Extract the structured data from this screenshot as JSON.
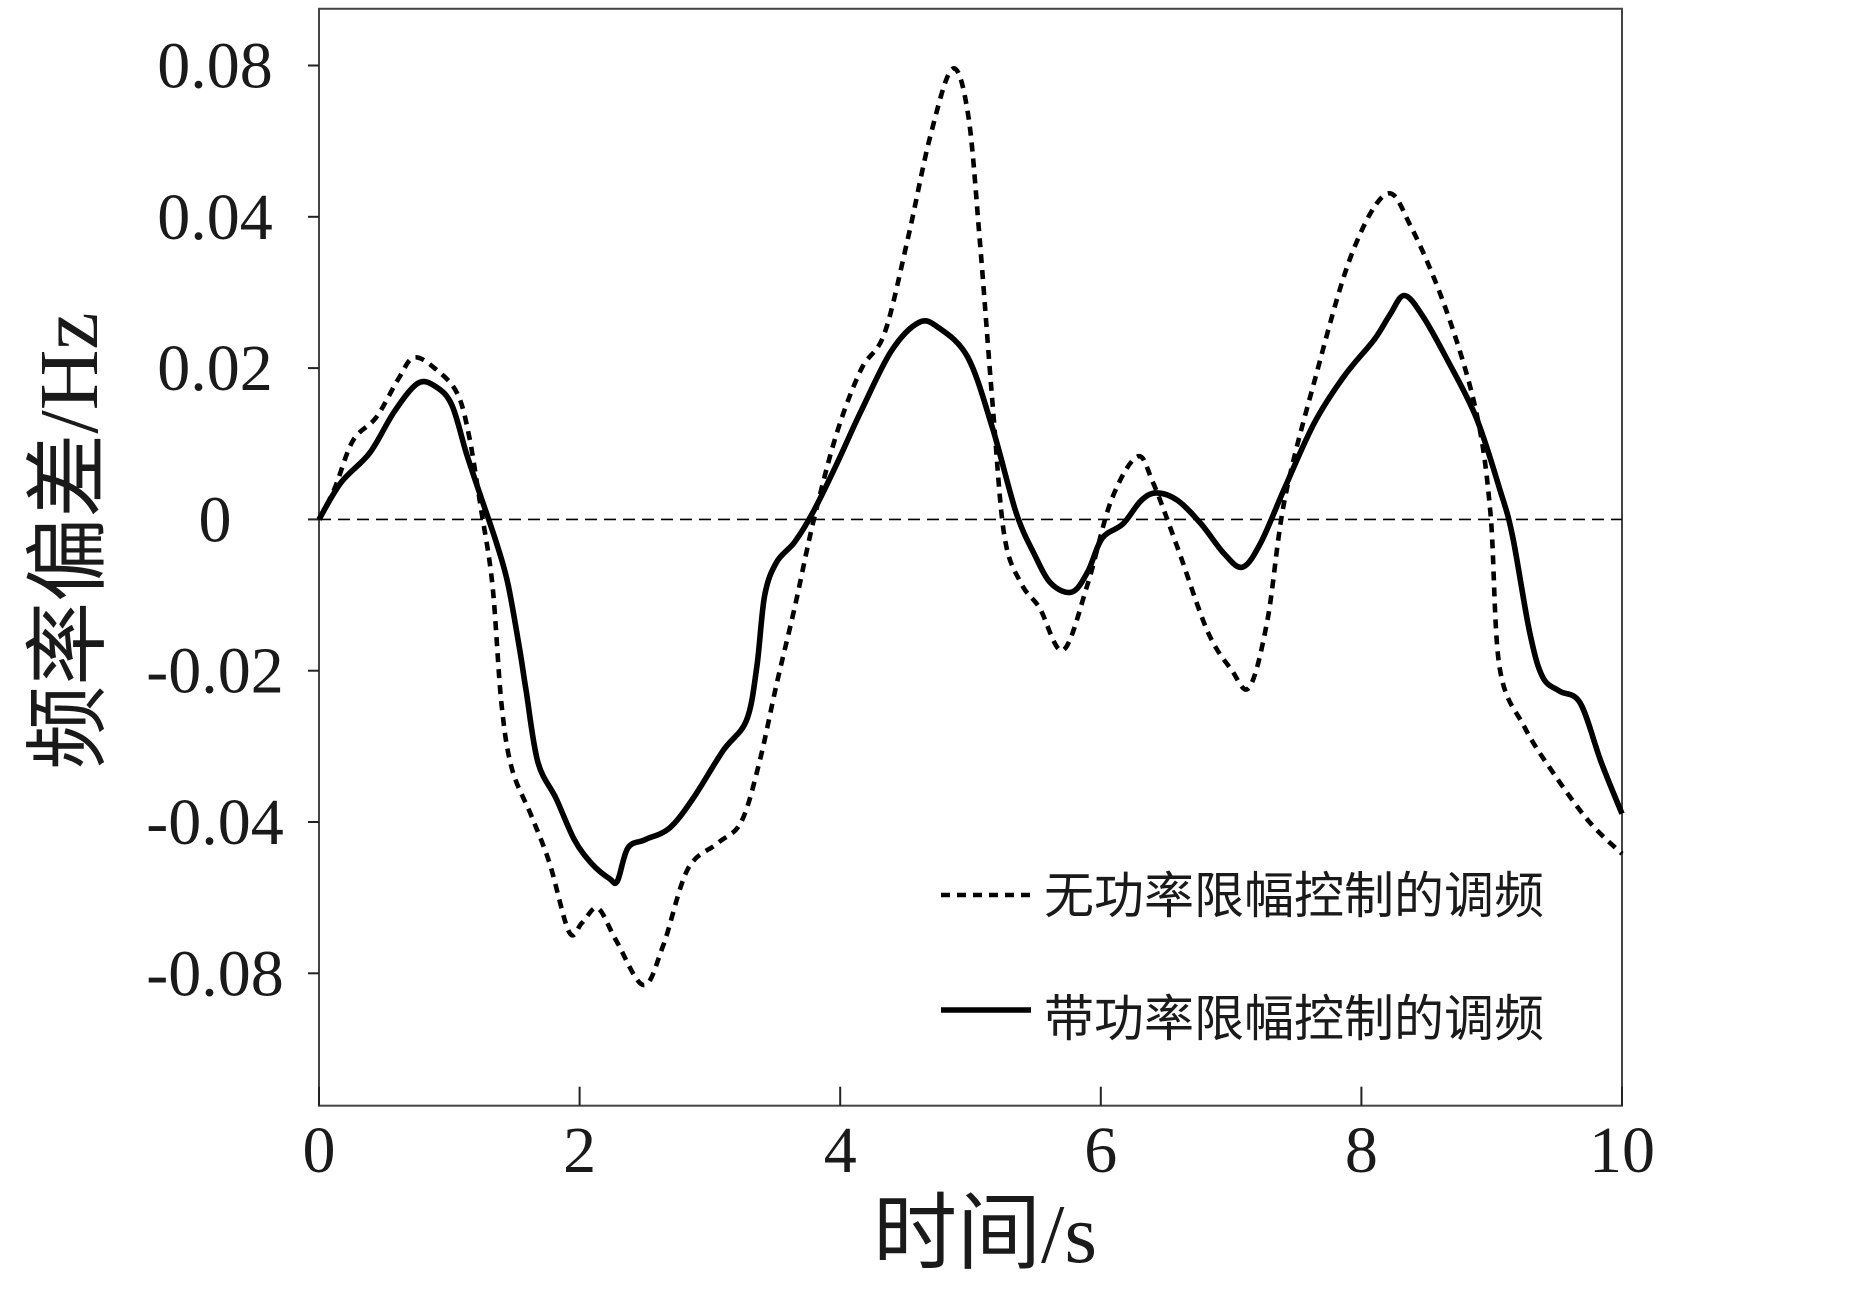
{
  "chart_data": {
    "type": "line",
    "xlabel": "时间/s",
    "ylabel": "频率偏差/Hz",
    "xlim": [
      0,
      10
    ],
    "xticks": [
      0,
      2,
      4,
      6,
      8,
      10
    ],
    "xtick_labels": [
      "0",
      "2",
      "4",
      "6",
      "8",
      "10"
    ],
    "yticks": [
      0.08,
      0.04,
      0.02,
      0,
      -0.02,
      -0.04,
      -0.08
    ],
    "ytick_labels": [
      "0.08",
      "0.04",
      "0.02",
      "0",
      "-0.02",
      "-0.04",
      "-0.08"
    ],
    "ylim": [
      -0.115,
      0.095
    ],
    "grid": false,
    "legend": {
      "position": "bottom-right"
    },
    "reference_line": {
      "y": 0,
      "style": "dashed",
      "color": "#000000"
    },
    "frame_color": "#444444",
    "series": [
      {
        "name": "无功率限幅控制的调频",
        "style": "dashed",
        "color": "#000000",
        "x": [
          0,
          0.12,
          0.26,
          0.44,
          0.61,
          0.73,
          0.9,
          1.06,
          1.15,
          1.24,
          1.33,
          1.4,
          1.48,
          1.63,
          1.77,
          1.92,
          2.02,
          2.14,
          2.28,
          2.49,
          2.64,
          2.83,
          3.06,
          3.24,
          3.38,
          3.51,
          3.65,
          3.79,
          3.97,
          4.16,
          4.34,
          4.52,
          4.69,
          4.86,
          4.98,
          5.07,
          5.17,
          5.26,
          5.39,
          5.53,
          5.71,
          5.9,
          6.08,
          6.28,
          6.4,
          6.59,
          6.82,
          7.0,
          7.14,
          7.28,
          7.41,
          7.64,
          7.92,
          8.19,
          8.38,
          8.65,
          8.88,
          8.99,
          9.06,
          9.25,
          9.48,
          9.75,
          10
        ],
        "y": [
          0,
          0.0041,
          0.0104,
          0.0135,
          0.0186,
          0.0214,
          0.0198,
          0.0167,
          0.0112,
          0.0017,
          -0.0085,
          -0.0243,
          -0.0329,
          -0.0392,
          -0.0509,
          -0.0691,
          -0.0666,
          -0.0628,
          -0.0713,
          -0.0831,
          -0.0728,
          -0.0525,
          -0.0456,
          -0.04,
          -0.0321,
          -0.0219,
          -0.0117,
          -0.0006,
          0.0112,
          0.0198,
          0.0246,
          0.0372,
          0.0611,
          0.0791,
          0.0674,
          0.0372,
          0.0151,
          -0.0022,
          -0.0085,
          -0.0117,
          -0.0173,
          -0.0085,
          0.0025,
          0.0083,
          0.0049,
          -0.0038,
          -0.0148,
          -0.0198,
          -0.0222,
          -0.0132,
          0.0025,
          0.0183,
          0.0348,
          0.046,
          0.0387,
          0.0277,
          0.0143,
          0.0009,
          -0.0195,
          -0.0274,
          -0.0337,
          -0.04,
          -0.0484
        ]
      },
      {
        "name": "带功率限幅控制的调频",
        "style": "solid",
        "color": "#000000",
        "x": [
          0,
          0.17,
          0.39,
          0.58,
          0.76,
          0.9,
          1.02,
          1.13,
          1.22,
          1.36,
          1.45,
          1.54,
          1.59,
          1.68,
          1.82,
          1.96,
          2.09,
          2.23,
          2.29,
          2.37,
          2.5,
          2.69,
          2.87,
          3.1,
          3.28,
          3.36,
          3.42,
          3.51,
          3.65,
          3.79,
          3.97,
          4.16,
          4.39,
          4.6,
          4.75,
          4.98,
          5.17,
          5.35,
          5.49,
          5.62,
          5.78,
          5.9,
          6.01,
          6.17,
          6.31,
          6.43,
          6.59,
          6.77,
          6.95,
          7.09,
          7.23,
          7.41,
          7.64,
          7.87,
          8.1,
          8.22,
          8.33,
          8.47,
          8.65,
          8.88,
          9.06,
          9.16,
          9.29,
          9.39,
          9.52,
          9.68,
          9.84,
          10
        ],
        "y": [
          0,
          0.0049,
          0.0088,
          0.0143,
          0.018,
          0.0175,
          0.0151,
          0.0088,
          0.0041,
          -0.003,
          -0.0085,
          -0.0172,
          -0.0227,
          -0.0321,
          -0.0369,
          -0.0447,
          -0.0509,
          -0.055,
          -0.0556,
          -0.0469,
          -0.0447,
          -0.0416,
          -0.0369,
          -0.0306,
          -0.0266,
          -0.0195,
          -0.0101,
          -0.0057,
          -0.003,
          0.0009,
          0.0072,
          0.0143,
          0.0222,
          0.026,
          0.0254,
          0.0214,
          0.012,
          0.0009,
          -0.0046,
          -0.0085,
          -0.0096,
          -0.0069,
          -0.0025,
          -0.0006,
          0.0025,
          0.0035,
          0.0025,
          -0.0006,
          -0.0046,
          -0.0063,
          -0.003,
          0.0041,
          0.0128,
          0.019,
          0.0238,
          0.0271,
          0.0296,
          0.0269,
          0.0214,
          0.0135,
          0.0041,
          -0.0022,
          -0.0148,
          -0.0208,
          -0.0227,
          -0.0243,
          -0.0321,
          -0.0389
        ]
      }
    ]
  }
}
